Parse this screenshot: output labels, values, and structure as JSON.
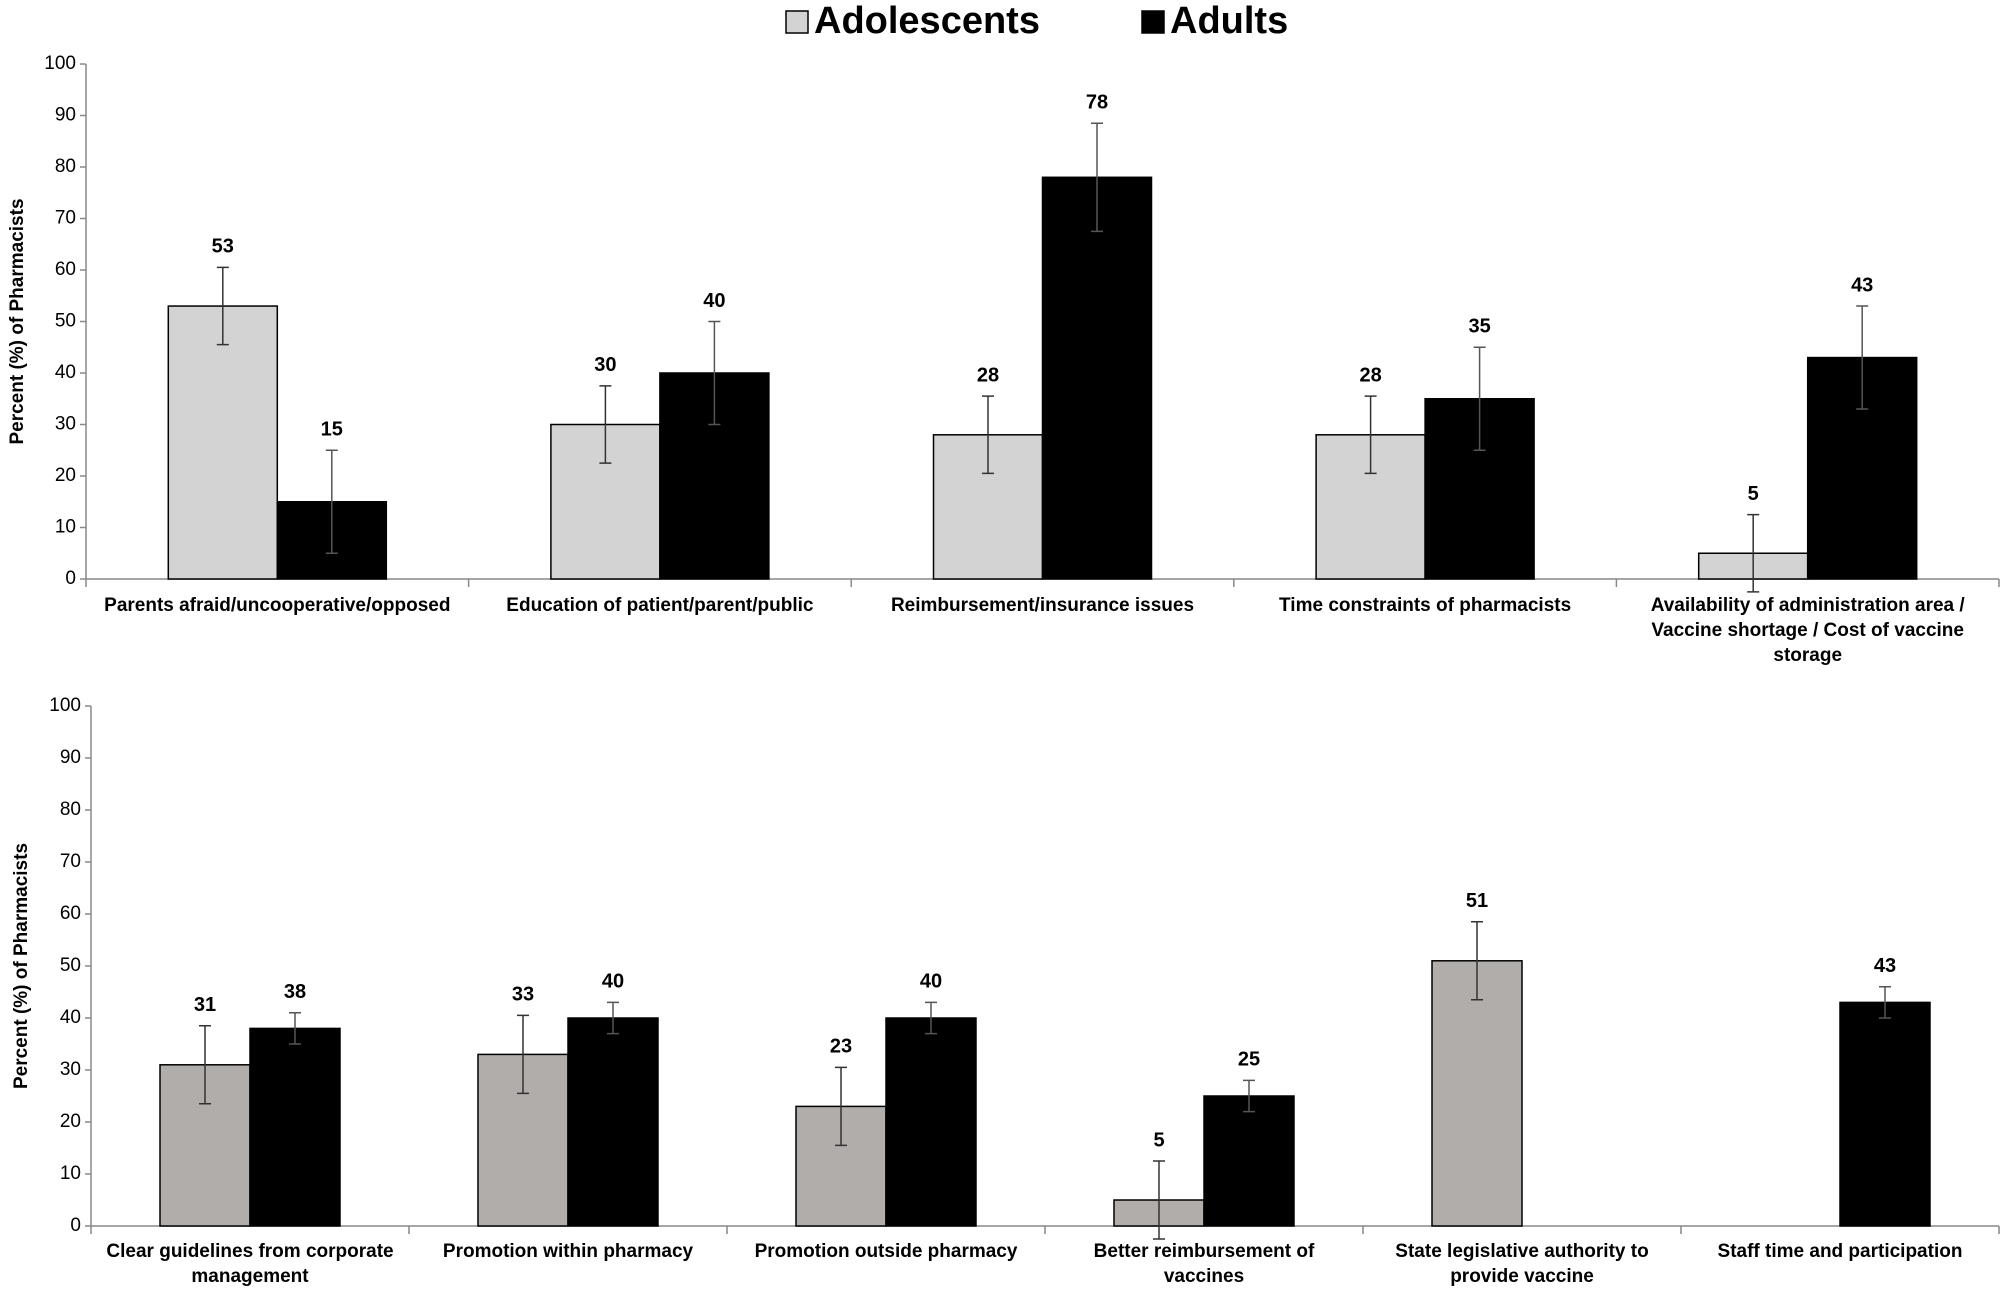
{
  "chart_data": [
    {
      "type": "bar",
      "y_label": "Percent (%) of Pharmacists",
      "categories": [
        "Parents afraid/uncooperative/opposed",
        "Education of patient/parent/public",
        "Reimbursement/insurance issues",
        "Time constraints of pharmacists",
        "Availability of administration area / Vaccine shortage / Cost of vaccine storage"
      ],
      "series": [
        {
          "name": "Adolescents",
          "color": "#d3d3d3",
          "values": [
            53,
            30,
            28,
            28,
            5
          ],
          "errors": [
            7.5,
            7.5,
            7.5,
            7.5,
            7.5
          ]
        },
        {
          "name": "Adults",
          "color": "#000000",
          "values": [
            15,
            40,
            78,
            35,
            43
          ],
          "errors": [
            10,
            10,
            10.5,
            10,
            10
          ]
        }
      ],
      "ylim": [
        0,
        100
      ],
      "yticks": [
        0,
        10,
        20,
        30,
        40,
        50,
        60,
        70,
        80,
        90,
        100
      ]
    },
    {
      "type": "bar",
      "y_label": "Percent (%) of Pharmacists",
      "categories": [
        "Clear guidelines from corporate management",
        "Promotion within pharmacy",
        "Promotion outside pharmacy",
        "Better reimbursement of vaccines",
        "State legislative authority to provide vaccine",
        "Staff time and participation"
      ],
      "series": [
        {
          "color": "#b0adab",
          "values": [
            31,
            33,
            23,
            5,
            51,
            null
          ],
          "errors": [
            7.5,
            7.5,
            7.5,
            7.5,
            7.5,
            null
          ]
        },
        {
          "color": "#000000",
          "values": [
            38,
            40,
            40,
            25,
            null,
            43
          ],
          "errors": [
            3,
            3,
            3,
            3,
            null,
            3
          ]
        }
      ],
      "ylim": [
        0,
        100
      ],
      "yticks": [
        0,
        10,
        20,
        30,
        40,
        50,
        60,
        70,
        80,
        90,
        100
      ]
    }
  ]
}
